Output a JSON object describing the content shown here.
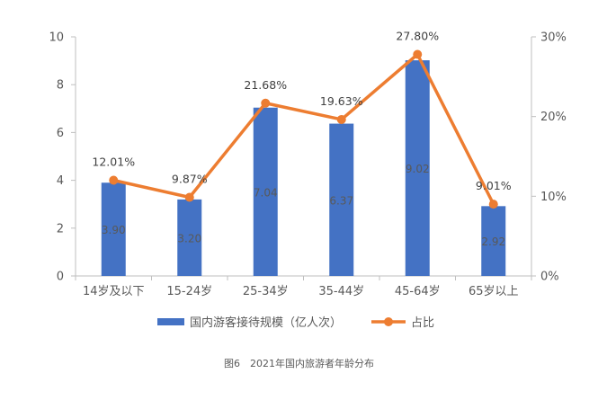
{
  "chart_data": {
    "type": "bar",
    "categories": [
      "14岁及以下",
      "15-24岁",
      "25-34岁",
      "35-44岁",
      "45-64岁",
      "65岁以上"
    ],
    "series": [
      {
        "name": "国内游客接待规模（亿人次）",
        "type": "bar",
        "axis": "left",
        "values": [
          3.9,
          3.2,
          7.04,
          6.37,
          9.02,
          2.92
        ],
        "labels": [
          "3.90",
          "3.20",
          "7.04",
          "6.37",
          "9.02",
          "2.92"
        ]
      },
      {
        "name": "占比",
        "type": "line",
        "axis": "right",
        "values": [
          12.01,
          9.87,
          21.68,
          19.63,
          27.8,
          9.01
        ],
        "labels": [
          "12.01%",
          "9.87%",
          "21.68%",
          "19.63%",
          "27.80%",
          "9.01%"
        ]
      }
    ],
    "y_left": {
      "ylim": [
        0,
        10
      ],
      "ticks": [
        "0",
        "2",
        "4",
        "6",
        "8",
        "10"
      ],
      "tick_values": [
        0,
        2,
        4,
        6,
        8,
        10
      ]
    },
    "y_right": {
      "ylim": [
        0,
        30
      ],
      "ticks": [
        "0%",
        "10%",
        "20%",
        "30%"
      ],
      "tick_values": [
        0,
        10,
        20,
        30
      ]
    },
    "grid": false,
    "legend_position": "bottom",
    "colors": {
      "bar": "#4472c4",
      "line": "#ed7d31",
      "axis": "#bfbfbf",
      "text": "#595959"
    }
  },
  "caption": "图6　2021年国内旅游者年龄分布"
}
